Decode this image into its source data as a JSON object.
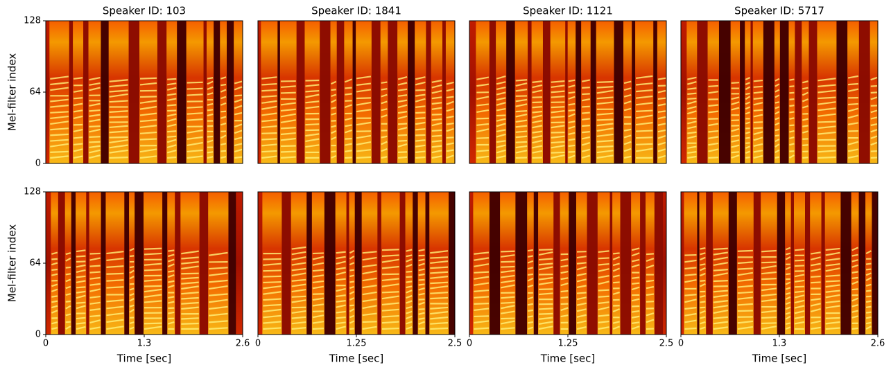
{
  "chart_data": [
    {
      "type": "spectrogram",
      "title": "Speaker ID: 103",
      "ylabel": "Mel-filter index",
      "ylim": [
        0,
        128
      ],
      "yticks": [
        0,
        64,
        128
      ]
    },
    {
      "type": "spectrogram",
      "title": "Speaker ID: 1841"
    },
    {
      "type": "spectrogram",
      "title": "Speaker ID: 1121"
    },
    {
      "type": "spectrogram",
      "title": "Speaker ID: 5717"
    },
    {
      "type": "spectrogram",
      "ylabel": "Mel-filter index",
      "xlabel": "Time [sec]",
      "xlim": [
        0,
        2.6
      ],
      "xticks": [
        0,
        1.3,
        2.6
      ],
      "ylim": [
        0,
        128
      ],
      "yticks": [
        0,
        64,
        128
      ]
    },
    {
      "type": "spectrogram",
      "xlabel": "Time [sec]",
      "xlim": [
        0,
        2.5
      ],
      "xticks": [
        0,
        1.25,
        2.5
      ]
    },
    {
      "type": "spectrogram",
      "xlabel": "Time [sec]",
      "xlim": [
        0,
        2.5
      ],
      "xticks": [
        0,
        1.25,
        2.5
      ]
    },
    {
      "type": "spectrogram",
      "xlabel": "Time [sec]",
      "xlim": [
        0,
        2.6
      ],
      "xticks": [
        0,
        1.3,
        2.6
      ]
    }
  ]
}
